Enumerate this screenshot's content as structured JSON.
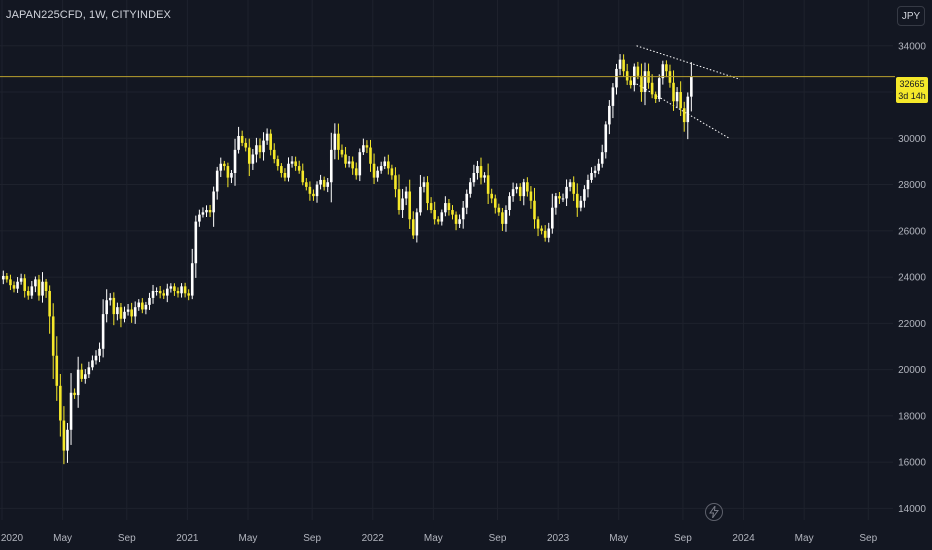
{
  "header": {
    "symbol": "JAPAN225CFD, 1W, CITYINDEX"
  },
  "currency_button": {
    "label": "JPY"
  },
  "price_badge": {
    "price": "32665",
    "countdown": "3d 14h"
  },
  "colors": {
    "bull": "#ffffff",
    "bear": "#f5e82a",
    "background": "#131722",
    "price_line": "#b8a02e",
    "grid": "#1e222d",
    "axis_text": "#b2b5be"
  },
  "icons": {
    "replay": "lightning-bolt-icon"
  },
  "chart_data": {
    "type": "candlestick",
    "title": "",
    "ylim": [
      13500,
      35200
    ],
    "y_ticks": [
      14000,
      16000,
      18000,
      20000,
      22000,
      24000,
      26000,
      28000,
      30000,
      32000,
      34000
    ],
    "x_ticks": [
      "2020",
      "May",
      "Sep",
      "2021",
      "May",
      "Sep",
      "2022",
      "May",
      "Sep",
      "2023",
      "May",
      "Sep",
      "2024",
      "May",
      "Sep"
    ],
    "x_tick_weeks": [
      0,
      17,
      35,
      52,
      69,
      87,
      104,
      121,
      139,
      156,
      173,
      191,
      208,
      225,
      243
    ],
    "last_price": 32665,
    "weeks_plotted": 199,
    "closes": [
      24050,
      23900,
      23650,
      23500,
      23800,
      23950,
      23400,
      23200,
      23600,
      23900,
      23200,
      23800,
      23400,
      22300,
      20600,
      19300,
      17800,
      16500,
      17400,
      19000,
      18900,
      20000,
      19600,
      19800,
      20100,
      20400,
      20600,
      20900,
      22400,
      23000,
      23100,
      22400,
      22700,
      22200,
      22500,
      22600,
      22300,
      22700,
      22900,
      22600,
      22800,
      23100,
      23400,
      23400,
      23300,
      23200,
      23500,
      23600,
      23400,
      23300,
      23600,
      23300,
      23200,
      24600,
      26400,
      26700,
      26800,
      26900,
      26800,
      27700,
      28600,
      28900,
      28800,
      28300,
      28500,
      29500,
      30100,
      29800,
      29600,
      28900,
      29300,
      29700,
      29400,
      29900,
      30200,
      29500,
      29100,
      28800,
      28500,
      28300,
      28900,
      29000,
      28800,
      28600,
      28100,
      27900,
      27600,
      27500,
      28000,
      28200,
      27900,
      28100,
      29500,
      30200,
      29500,
      29300,
      28900,
      29000,
      28700,
      28400,
      29400,
      29700,
      29600,
      28900,
      28300,
      28600,
      28800,
      29000,
      28700,
      28400,
      27800,
      26900,
      27400,
      27700,
      26500,
      25800,
      26800,
      27900,
      28100,
      27200,
      26900,
      26500,
      26400,
      26800,
      27200,
      26900,
      26700,
      26300,
      26500,
      27000,
      27600,
      28100,
      28500,
      28800,
      28300,
      28400,
      27600,
      27400,
      27000,
      26800,
      26300,
      26900,
      27500,
      27800,
      27900,
      27500,
      28100,
      27700,
      27300,
      26500,
      26100,
      26000,
      25700,
      26100,
      27000,
      27500,
      27400,
      27400,
      27900,
      28100,
      27600,
      27000,
      27300,
      27800,
      28200,
      28500,
      28600,
      28900,
      29400,
      30600,
      31400,
      32200,
      33000,
      33400,
      32900,
      32500,
      32300,
      33100,
      32700,
      32000,
      32900,
      32400,
      31900,
      31700,
      32600,
      33200,
      32900,
      32400,
      31600,
      32000,
      31300,
      30700,
      31800,
      32665
    ]
  }
}
